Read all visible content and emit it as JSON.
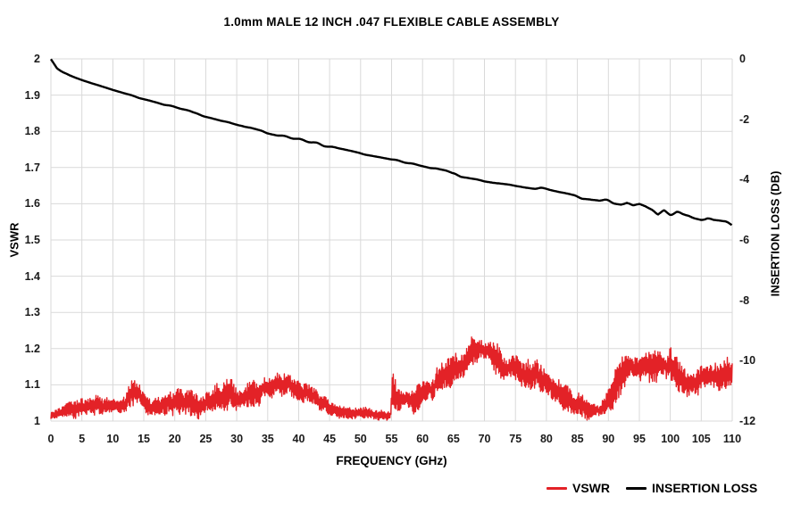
{
  "chart_data": {
    "type": "line",
    "title": "1.0mm MALE 12 INCH .047 FLEXIBLE CABLE ASSEMBLY",
    "xlabel": "FREQUENCY (GHz)",
    "ylabel_left": "VSWR",
    "ylabel_right": "INSERTION LOSS (DB)",
    "grid": true,
    "grid_color": "#d9d9d9",
    "background_color": "#ffffff",
    "legend_position": "bottom-right",
    "x_axis": {
      "min": 0,
      "max": 110,
      "ticks": [
        0,
        5,
        10,
        15,
        20,
        25,
        30,
        35,
        40,
        45,
        50,
        55,
        60,
        65,
        70,
        75,
        80,
        85,
        90,
        95,
        100,
        105,
        110
      ]
    },
    "vswr_axis": {
      "min": 1,
      "max": 2,
      "ticks": [
        2,
        1.9,
        1.8,
        1.7,
        1.6,
        1.5,
        1.4,
        1.3,
        1.2,
        1.1,
        1
      ]
    },
    "il_axis": {
      "min": -12,
      "max": 0,
      "ticks": [
        0,
        -2,
        -4,
        -6,
        -8,
        -10,
        -12
      ]
    },
    "series": [
      {
        "name": "VSWR",
        "color": "#e32227",
        "axis": "left",
        "style": "dense noisy ripple band",
        "envelope_keypoints_f_center_halfamp": [
          [
            0,
            1.015,
            0.015
          ],
          [
            2,
            1.03,
            0.027
          ],
          [
            4,
            1.035,
            0.03
          ],
          [
            7,
            1.04,
            0.033
          ],
          [
            9,
            1.045,
            0.035
          ],
          [
            11,
            1.035,
            0.03
          ],
          [
            13,
            1.07,
            0.055
          ],
          [
            14,
            1.075,
            0.05
          ],
          [
            15.5,
            1.045,
            0.035
          ],
          [
            17,
            1.035,
            0.03
          ],
          [
            19,
            1.05,
            0.042
          ],
          [
            21,
            1.06,
            0.045
          ],
          [
            23,
            1.045,
            0.04
          ],
          [
            25,
            1.05,
            0.042
          ],
          [
            27,
            1.065,
            0.047
          ],
          [
            29,
            1.07,
            0.05
          ],
          [
            31,
            1.06,
            0.045
          ],
          [
            33,
            1.07,
            0.05
          ],
          [
            35,
            1.09,
            0.055
          ],
          [
            37,
            1.1,
            0.055
          ],
          [
            39,
            1.095,
            0.055
          ],
          [
            41,
            1.08,
            0.05
          ],
          [
            43,
            1.06,
            0.045
          ],
          [
            45,
            1.04,
            0.038
          ],
          [
            47,
            1.025,
            0.027
          ],
          [
            49,
            1.02,
            0.022
          ],
          [
            51,
            1.02,
            0.02
          ],
          [
            53,
            1.015,
            0.017
          ],
          [
            54.8,
            1.012,
            0.013
          ],
          [
            55.2,
            1.09,
            0.08
          ],
          [
            55.8,
            1.07,
            0.055
          ],
          [
            57,
            1.06,
            0.05
          ],
          [
            58.5,
            1.055,
            0.045
          ],
          [
            60,
            1.07,
            0.05
          ],
          [
            62,
            1.1,
            0.055
          ],
          [
            64,
            1.13,
            0.055
          ],
          [
            66,
            1.15,
            0.055
          ],
          [
            68,
            1.19,
            0.05
          ],
          [
            69.5,
            1.205,
            0.045
          ],
          [
            71,
            1.185,
            0.05
          ],
          [
            73,
            1.15,
            0.055
          ],
          [
            75,
            1.14,
            0.055
          ],
          [
            77,
            1.13,
            0.05
          ],
          [
            79,
            1.12,
            0.05
          ],
          [
            81,
            1.09,
            0.05
          ],
          [
            83,
            1.07,
            0.048
          ],
          [
            85,
            1.045,
            0.04
          ],
          [
            87,
            1.03,
            0.03
          ],
          [
            88.5,
            1.025,
            0.025
          ],
          [
            90,
            1.06,
            0.045
          ],
          [
            92,
            1.13,
            0.06
          ],
          [
            93.5,
            1.155,
            0.055
          ],
          [
            95,
            1.145,
            0.05
          ],
          [
            97,
            1.155,
            0.055
          ],
          [
            98.5,
            1.165,
            0.06
          ],
          [
            100,
            1.15,
            0.055
          ],
          [
            102,
            1.115,
            0.05
          ],
          [
            103.5,
            1.1,
            0.045
          ],
          [
            105,
            1.115,
            0.05
          ],
          [
            107,
            1.13,
            0.05
          ],
          [
            109,
            1.135,
            0.05
          ],
          [
            110,
            1.14,
            0.04
          ]
        ]
      },
      {
        "name": "INSERTION LOSS",
        "color": "#000000",
        "axis": "right",
        "points_f_db": [
          [
            0,
            0
          ],
          [
            1,
            -0.31
          ],
          [
            2,
            -0.45
          ],
          [
            3,
            -0.55
          ],
          [
            4,
            -0.63
          ],
          [
            5,
            -0.7
          ],
          [
            10,
            -1.03
          ],
          [
            15,
            -1.33
          ],
          [
            20,
            -1.6
          ],
          [
            25,
            -1.9
          ],
          [
            30,
            -2.17
          ],
          [
            35,
            -2.45
          ],
          [
            40,
            -2.66
          ],
          [
            45,
            -2.9
          ],
          [
            50,
            -3.1
          ],
          [
            55,
            -3.32
          ],
          [
            60,
            -3.55
          ],
          [
            65,
            -3.81
          ],
          [
            70,
            -4.02
          ],
          [
            75,
            -4.18
          ],
          [
            80,
            -4.32
          ],
          [
            85,
            -4.55
          ],
          [
            88,
            -4.65
          ],
          [
            90,
            -4.72
          ],
          [
            92,
            -4.8
          ],
          [
            93,
            -4.76
          ],
          [
            94,
            -4.86
          ],
          [
            95,
            -4.82
          ],
          [
            96,
            -4.9
          ],
          [
            97,
            -5.02
          ],
          [
            98,
            -5.2
          ],
          [
            99,
            -5.06
          ],
          [
            100,
            -5.12
          ],
          [
            101,
            -5.1
          ],
          [
            102,
            -5.18
          ],
          [
            103,
            -5.22
          ],
          [
            104,
            -5.26
          ],
          [
            105,
            -5.32
          ],
          [
            106,
            -5.3
          ],
          [
            107,
            -5.38
          ],
          [
            108,
            -5.41
          ],
          [
            109,
            -5.46
          ],
          [
            110,
            -5.56
          ]
        ]
      }
    ]
  }
}
